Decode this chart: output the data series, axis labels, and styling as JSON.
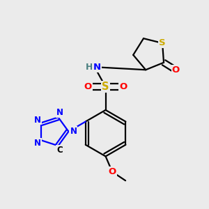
{
  "bg_color": "#ebebeb",
  "atom_colors": {
    "C": "#000000",
    "N": "#0000ff",
    "O": "#ff0000",
    "S_sulfonyl": "#ccaa00",
    "S_thio": "#ccaa00",
    "H": "#4a8080"
  },
  "bond_color": "#000000",
  "bond_width": 1.6,
  "font_size": 9.5
}
